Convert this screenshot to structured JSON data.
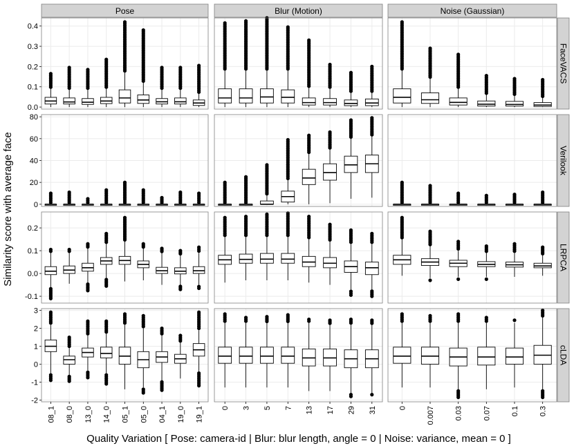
{
  "chart_data": {
    "type": "boxplot",
    "ylabel": "Similarity score with average face",
    "xlabel": "Quality Variation [ Pose: camera-id | Blur: blur length, angle = 0 | Noise: variance, mean = 0 ]",
    "columns": [
      {
        "title": "Pose",
        "categories": [
          "08_1",
          "08_0",
          "13_0",
          "14_0",
          "05_1",
          "05_0",
          "04_1",
          "19_0",
          "19_1"
        ]
      },
      {
        "title": "Blur (Motion)",
        "categories": [
          "0",
          "3",
          "5",
          "7",
          "13",
          "17",
          "29",
          "31"
        ]
      },
      {
        "title": "Noise (Gaussian)",
        "categories": [
          "0",
          "0.007",
          "0.03",
          "0.07",
          "0.1",
          "0.3"
        ]
      }
    ],
    "rows": [
      {
        "title": "FaceVACS",
        "ylim": [
          -0.01,
          0.44
        ],
        "yticks": [
          0.0,
          0.1,
          0.2,
          0.3,
          0.4
        ],
        "tick_labels": [
          "0.0",
          "0.1",
          "0.2",
          "0.3",
          "0.4"
        ],
        "boxes": [
          [
            [
              0,
              0.015,
              0.03,
              0.048,
              0.09,
              [
                0.165
              ]
            ],
            [
              0,
              0.015,
              0.025,
              0.045,
              0.085,
              [
                0.195
              ]
            ],
            [
              0,
              0.013,
              0.024,
              0.042,
              0.085,
              [
                0.185
              ]
            ],
            [
              0,
              0.017,
              0.03,
              0.048,
              0.09,
              [
                0.235
              ]
            ],
            [
              0,
              0.02,
              0.045,
              0.085,
              0.17,
              [
                0.42
              ]
            ],
            [
              0,
              0.018,
              0.035,
              0.06,
              0.12,
              [
                0.38
              ]
            ],
            [
              0,
              0.015,
              0.026,
              0.042,
              0.085,
              [
                0.195
              ]
            ],
            [
              0,
              0.015,
              0.026,
              0.045,
              0.085,
              [
                0.195
              ]
            ],
            [
              0,
              0.008,
              0.02,
              0.035,
              0.065,
              [
                0.205
              ]
            ]
          ],
          [
            [
              0,
              0.02,
              0.045,
              0.09,
              0.18,
              [
                0.415
              ]
            ],
            [
              0,
              0.02,
              0.045,
              0.09,
              0.18,
              [
                0.425
              ]
            ],
            [
              0,
              0.02,
              0.05,
              0.09,
              0.18,
              [
                0.44
              ]
            ],
            [
              0,
              0.02,
              0.048,
              0.085,
              0.18,
              [
                0.395
              ]
            ],
            [
              0,
              0.01,
              0.022,
              0.045,
              0.095,
              [
                0.33
              ]
            ],
            [
              0,
              0.01,
              0.022,
              0.042,
              0.09,
              [
                0.21
              ]
            ],
            [
              0,
              0.007,
              0.018,
              0.035,
              0.07,
              [
                0.17
              ]
            ],
            [
              0,
              0.007,
              0.02,
              0.04,
              0.07,
              [
                0.2
              ]
            ]
          ],
          [
            [
              0,
              0.02,
              0.048,
              0.09,
              0.18,
              [
                0.42
              ]
            ],
            [
              0,
              0.018,
              0.036,
              0.07,
              0.14,
              [
                0.29
              ]
            ],
            [
              0,
              0.01,
              0.023,
              0.045,
              0.09,
              [
                0.26
              ]
            ],
            [
              0,
              0.005,
              0.014,
              0.03,
              0.06,
              [
                0.155
              ]
            ],
            [
              0,
              0.005,
              0.013,
              0.028,
              0.055,
              [
                0.14
              ]
            ],
            [
              0,
              0.003,
              0.01,
              0.022,
              0.045,
              [
                0.135
              ]
            ]
          ]
        ]
      },
      {
        "title": "Verilook",
        "ylim": [
          -2,
          82
        ],
        "yticks": [
          0,
          20,
          40,
          60,
          80
        ],
        "tick_labels": [
          "0",
          "20",
          "40",
          "60",
          "80"
        ],
        "boxes": [
          [
            [
              0,
              0,
              0,
              0,
              0,
              [
                10
              ]
            ],
            [
              0,
              0,
              0,
              0,
              0,
              [
                11
              ]
            ],
            [
              0,
              0,
              0,
              0,
              0,
              [
                5
              ]
            ],
            [
              0,
              0,
              0,
              0,
              0,
              [
                13
              ]
            ],
            [
              0,
              0,
              0,
              0,
              0,
              [
                20
              ]
            ],
            [
              0,
              0,
              0,
              0,
              0,
              [
                13
              ]
            ],
            [
              0,
              0,
              0,
              0,
              0,
              [
                6
              ]
            ],
            [
              0,
              0,
              0,
              0,
              0,
              [
                11
              ]
            ],
            [
              0,
              0,
              0,
              0,
              0,
              [
                10
              ]
            ]
          ],
          [
            [
              0,
              0,
              0,
              0,
              0,
              [
                20
              ]
            ],
            [
              0,
              0,
              0,
              0,
              0,
              [
                25
              ]
            ],
            [
              0,
              0,
              0,
              3,
              8,
              [
                36
              ]
            ],
            [
              0,
              2,
              7,
              12,
              22,
              [
                59
              ]
            ],
            [
              0,
              18,
              24,
              32,
              46,
              [
                63
              ]
            ],
            [
              1,
              22,
              29,
              37,
              50,
              [
                66
              ]
            ],
            [
              5,
              29,
              36,
              44,
              60,
              [
                77
              ]
            ],
            [
              6,
              29,
              37,
              45,
              62,
              [
                79
              ]
            ]
          ],
          [
            [
              0,
              0,
              0,
              0,
              0,
              [
                20
              ]
            ],
            [
              0,
              0,
              0,
              0,
              0,
              [
                17
              ]
            ],
            [
              0,
              0,
              0,
              0,
              0,
              [
                10
              ]
            ],
            [
              0,
              0,
              0,
              0,
              0,
              [
                8
              ]
            ],
            [
              0,
              0,
              0,
              0,
              0,
              [
                9
              ]
            ],
            [
              0,
              0,
              0,
              0,
              0,
              [
                11
              ]
            ]
          ]
        ]
      },
      {
        "title": "LRPCA",
        "ylim": [
          -0.13,
          0.27
        ],
        "yticks": [
          -0.1,
          0.0,
          0.1,
          0.2
        ],
        "tick_labels": [
          "-0.1",
          "0.0",
          "0.1",
          "0.2"
        ],
        "boxes": [
          [
            [
              -0.06,
              -0.005,
              0.01,
              0.03,
              0.09,
              [
                0.105,
                -0.11
              ]
            ],
            [
              -0.045,
              0.0,
              0.015,
              0.033,
              0.09,
              [
                0.105,
                -0.05
              ]
            ],
            [
              -0.04,
              0.01,
              0.025,
              0.045,
              0.11,
              [
                0.13,
                -0.075
              ]
            ],
            [
              -0.02,
              0.04,
              0.055,
              0.07,
              0.13,
              [
                0.175,
                -0.055
              ]
            ],
            [
              -0.035,
              0.04,
              0.057,
              0.075,
              0.14,
              [
                0.245
              ]
            ],
            [
              -0.03,
              0.025,
              0.04,
              0.055,
              0.11,
              [
                0.13
              ]
            ],
            [
              -0.05,
              0.0,
              0.012,
              0.027,
              0.09,
              [
                0.11,
                -0.055
              ]
            ],
            [
              -0.05,
              -0.002,
              0.01,
              0.025,
              0.08,
              [
                0.1,
                -0.07
              ]
            ],
            [
              -0.05,
              0.0,
              0.012,
              0.03,
              0.09,
              [
                0.115,
                -0.065
              ]
            ]
          ],
          [
            [
              -0.04,
              0.04,
              0.06,
              0.08,
              0.16,
              [
                0.245
              ]
            ],
            [
              -0.03,
              0.045,
              0.062,
              0.085,
              0.16,
              [
                0.25
              ]
            ],
            [
              -0.03,
              0.045,
              0.063,
              0.088,
              0.16,
              [
                0.26
              ]
            ],
            [
              -0.03,
              0.045,
              0.063,
              0.088,
              0.16,
              [
                0.265
              ]
            ],
            [
              -0.04,
              0.03,
              0.05,
              0.075,
              0.15,
              [
                0.25
              ]
            ],
            [
              -0.05,
              0.025,
              0.045,
              0.07,
              0.14,
              [
                0.215
              ]
            ],
            [
              -0.07,
              0.005,
              0.03,
              0.055,
              0.13,
              [
                0.19,
                -0.095
              ]
            ],
            [
              -0.07,
              -0.005,
              0.025,
              0.05,
              0.13,
              [
                0.175,
                -0.1
              ]
            ]
          ],
          [
            [
              -0.01,
              0.04,
              0.06,
              0.08,
              0.15,
              [
                0.245
              ]
            ],
            [
              -0.02,
              0.035,
              0.05,
              0.065,
              0.12,
              [
                0.185,
                -0.03
              ]
            ],
            [
              -0.015,
              0.03,
              0.045,
              0.058,
              0.1,
              [
                0.14,
                -0.025
              ]
            ],
            [
              -0.015,
              0.03,
              0.04,
              0.052,
              0.09,
              [
                0.12,
                -0.025
              ]
            ],
            [
              -0.015,
              0.028,
              0.038,
              0.05,
              0.09,
              [
                0.13,
                -0.015
              ]
            ],
            [
              -0.01,
              0.025,
              0.033,
              0.045,
              0.08,
              [
                0.115
              ]
            ]
          ]
        ]
      },
      {
        "title": "cLDA",
        "ylim": [
          -2.1,
          3.1
        ],
        "yticks": [
          -2,
          -1,
          0,
          1,
          2,
          3
        ],
        "tick_labels": [
          "-2",
          "-1",
          "0",
          "1",
          "2",
          "3"
        ],
        "boxes": [
          [
            [
              -0.5,
              0.7,
              1.0,
              1.35,
              2.2,
              [
                2.9,
                -0.9
              ]
            ],
            [
              -0.6,
              0.0,
              0.25,
              0.45,
              0.9,
              [
                1.5,
                -0.95
              ]
            ],
            [
              -0.35,
              0.4,
              0.65,
              0.9,
              1.6,
              [
                2.4,
                -0.75
              ]
            ],
            [
              -0.5,
              0.35,
              0.6,
              0.95,
              1.7,
              [
                2.4,
                -1.1
              ]
            ],
            [
              -1.4,
              0.0,
              0.45,
              0.95,
              2.2,
              [
                2.8
              ]
            ],
            [
              -1.3,
              -0.2,
              0.25,
              0.7,
              2.0,
              [
                2.7,
                -1.6
              ]
            ],
            [
              -0.9,
              0.1,
              0.4,
              0.7,
              1.6,
              [
                2.0,
                -1.45
              ]
            ],
            [
              -0.8,
              0.05,
              0.3,
              0.55,
              1.2,
              [
                1.6
              ]
            ],
            [
              -0.4,
              0.45,
              0.8,
              1.15,
              1.9,
              [
                2.9,
                -1.2
              ]
            ]
          ],
          [
            [
              -1.3,
              0.05,
              0.45,
              0.95,
              2.3,
              [
                2.8
              ]
            ],
            [
              -1.3,
              0.05,
              0.45,
              0.95,
              2.3,
              [
                2.6
              ]
            ],
            [
              -1.3,
              0.05,
              0.45,
              0.95,
              2.3,
              [
                2.65
              ]
            ],
            [
              -1.3,
              0.05,
              0.45,
              0.95,
              2.3,
              [
                2.75
              ]
            ],
            [
              -1.5,
              -0.1,
              0.35,
              0.85,
              2.3,
              [
                2.5
              ]
            ],
            [
              -1.5,
              -0.1,
              0.35,
              0.85,
              2.2,
              [
                2.45
              ]
            ],
            [
              -1.6,
              -0.2,
              0.3,
              0.8,
              2.2,
              [
                2.5,
                -1.8
              ]
            ],
            [
              -1.6,
              -0.2,
              0.3,
              0.8,
              2.2,
              [
                2.45,
                -1.7
              ]
            ]
          ],
          [
            [
              -1.3,
              0.05,
              0.45,
              0.95,
              2.3,
              [
                2.8
              ]
            ],
            [
              -1.3,
              0.0,
              0.45,
              0.95,
              2.3,
              [
                2.7
              ]
            ],
            [
              -1.4,
              -0.1,
              0.4,
              0.9,
              2.3,
              [
                2.8,
                -1.85
              ]
            ],
            [
              -1.4,
              -0.05,
              0.4,
              0.95,
              2.3,
              [
                2.6
              ]
            ],
            [
              -1.3,
              0.0,
              0.4,
              0.9,
              2.3,
              [
                2.45
              ]
            ],
            [
              -1.4,
              0.0,
              0.5,
              1.05,
              2.6,
              [
                3.0,
                -1.85
              ]
            ]
          ]
        ]
      }
    ],
    "colors": {
      "strip_fill": "#d3d3d3",
      "panel_border": "#7f7f7f",
      "grid": "#ebebeb",
      "box_fill": "#ffffff",
      "ink": "#000000",
      "tick_text": "#000000"
    }
  }
}
